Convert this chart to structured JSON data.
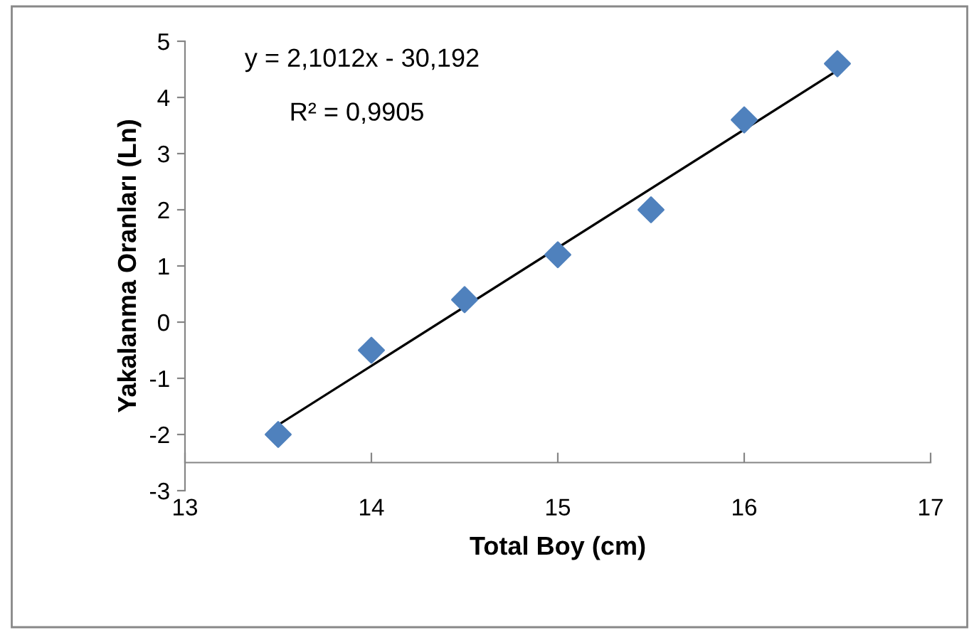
{
  "chart_data": {
    "type": "scatter",
    "xlabel": "Total Boy (cm)",
    "ylabel": "Yakalanma Oranları (Ln)",
    "annotations": [
      "y = 2,1012x - 30,192",
      "R² = 0,9905"
    ],
    "series": [
      {
        "color": "#4f81bd",
        "marker": "diamond",
        "x": [
          13.5,
          14,
          14.5,
          15,
          15.5,
          16,
          16.5
        ],
        "values": [
          -2,
          -0.5,
          0.4,
          1.2,
          2,
          3.6,
          4.6
        ]
      },
      {
        "type": "line",
        "color": "#000000",
        "marker": "none",
        "line_style": "solid",
        "x": [
          13.5,
          16.5
        ],
        "values": [
          -1.83,
          4.48
        ]
      }
    ],
    "xlim": [
      13,
      17
    ],
    "xticks": [
      13,
      14,
      15,
      16,
      17
    ],
    "ylim": [
      -3,
      5
    ],
    "yticks": [
      -3,
      -2,
      -1,
      0,
      1,
      2,
      3,
      4,
      5
    ],
    "grid": false,
    "legend": false
  }
}
